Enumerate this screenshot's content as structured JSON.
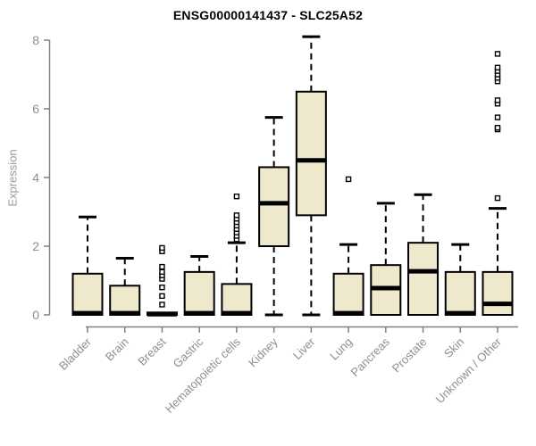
{
  "colors": {
    "background": "#ffffff",
    "title": "#000000",
    "axis": "#808080",
    "tick_label": "#8f8f8f",
    "axis_label": "#9a9a9a",
    "box_fill": "#EEE8CD",
    "box_border": "#000000"
  },
  "chart_data": {
    "type": "boxplot",
    "title": "ENSG00000141437 - SLC25A52",
    "ylabel": "Expression",
    "xlabel": "",
    "ylim": [
      0,
      8
    ],
    "yticks": [
      0,
      2,
      4,
      6,
      8
    ],
    "grid": false,
    "categories": [
      "Bladder",
      "Brain",
      "Breast",
      "Gastric",
      "Hematopoietic cells",
      "Kidney",
      "Liver",
      "Lung",
      "Pancreas",
      "Prostate",
      "Skin",
      "Unknown / Other"
    ],
    "series": [
      {
        "category": "Bladder",
        "whisker_low": 0,
        "q1": 0,
        "median": 0.05,
        "q3": 1.2,
        "whisker_high": 2.85,
        "outliers": []
      },
      {
        "category": "Brain",
        "whisker_low": 0,
        "q1": 0,
        "median": 0.05,
        "q3": 0.85,
        "whisker_high": 1.65,
        "outliers": []
      },
      {
        "category": "Breast",
        "whisker_low": 0,
        "q1": 0,
        "median": 0.02,
        "q3": 0.07,
        "whisker_high": 0.07,
        "outliers": [
          0.3,
          0.55,
          0.8,
          1.05,
          1.15,
          1.25,
          1.4,
          1.85,
          1.95
        ]
      },
      {
        "category": "Gastric",
        "whisker_low": 0,
        "q1": 0,
        "median": 0.05,
        "q3": 1.25,
        "whisker_high": 1.7,
        "outliers": []
      },
      {
        "category": "Hematopoietic cells",
        "whisker_low": 0,
        "q1": 0,
        "median": 0.05,
        "q3": 0.9,
        "whisker_high": 2.1,
        "outliers": [
          2.2,
          2.3,
          2.4,
          2.5,
          2.6,
          2.7,
          2.8,
          2.9,
          3.45
        ]
      },
      {
        "category": "Kidney",
        "whisker_low": 0,
        "q1": 2.0,
        "median": 3.25,
        "q3": 4.3,
        "whisker_high": 5.75,
        "outliers": []
      },
      {
        "category": "Liver",
        "whisker_low": 0,
        "q1": 2.9,
        "median": 4.5,
        "q3": 6.5,
        "whisker_high": 8.1,
        "outliers": []
      },
      {
        "category": "Lung",
        "whisker_low": 0,
        "q1": 0,
        "median": 0.05,
        "q3": 1.2,
        "whisker_high": 2.05,
        "outliers": [
          3.95
        ]
      },
      {
        "category": "Pancreas",
        "whisker_low": 0,
        "q1": 0,
        "median": 0.78,
        "q3": 1.45,
        "whisker_high": 3.25,
        "outliers": []
      },
      {
        "category": "Prostate",
        "whisker_low": 0,
        "q1": 0,
        "median": 1.27,
        "q3": 2.1,
        "whisker_high": 3.5,
        "outliers": []
      },
      {
        "category": "Skin",
        "whisker_low": 0,
        "q1": 0,
        "median": 0.05,
        "q3": 1.25,
        "whisker_high": 2.05,
        "outliers": []
      },
      {
        "category": "Unknown / Other",
        "whisker_low": 0,
        "q1": 0,
        "median": 0.32,
        "q3": 1.25,
        "whisker_high": 3.1,
        "outliers": [
          3.4,
          5.4,
          5.45,
          5.75,
          6.15,
          6.25,
          6.8,
          6.9,
          7.0,
          7.1,
          7.2,
          7.6
        ]
      }
    ]
  }
}
